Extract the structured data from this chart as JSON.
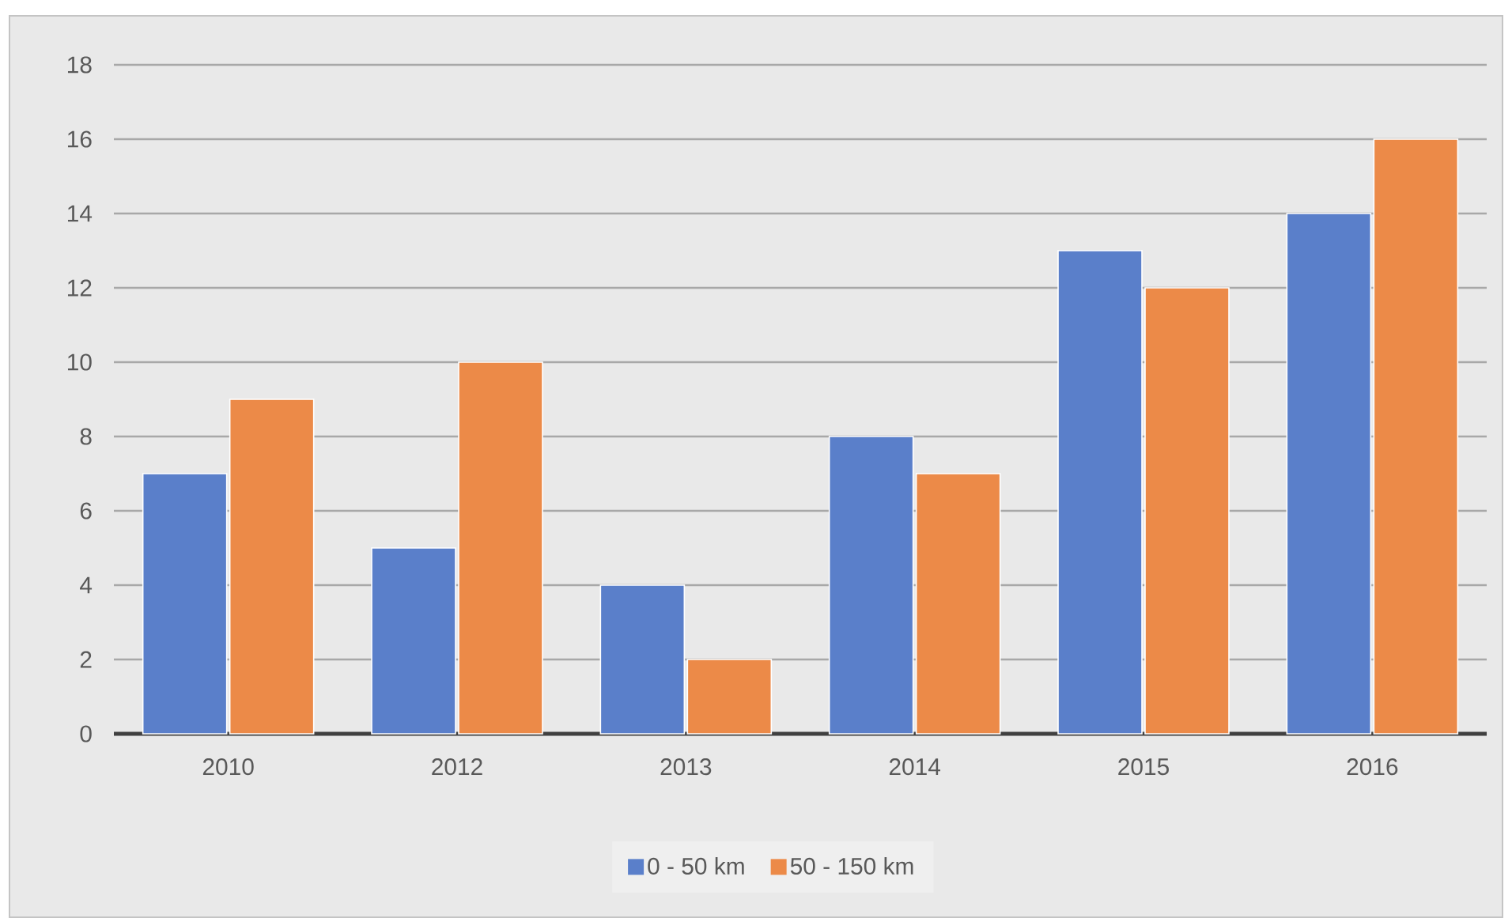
{
  "chart_data": {
    "type": "bar",
    "categories": [
      "2010",
      "2012",
      "2013",
      "2014",
      "2015",
      "2016"
    ],
    "series": [
      {
        "name": "0 - 50 km",
        "color": "#5a7fca",
        "values": [
          7,
          5,
          4,
          8,
          13,
          14
        ]
      },
      {
        "name": "50 - 150 km",
        "color": "#ec8a48",
        "values": [
          9,
          10,
          2,
          7,
          12,
          16
        ]
      }
    ],
    "ylim": [
      0,
      18
    ],
    "yticks": [
      0,
      2,
      4,
      6,
      8,
      10,
      12,
      14,
      16,
      18
    ],
    "grid": "y",
    "legend": "bottom"
  }
}
